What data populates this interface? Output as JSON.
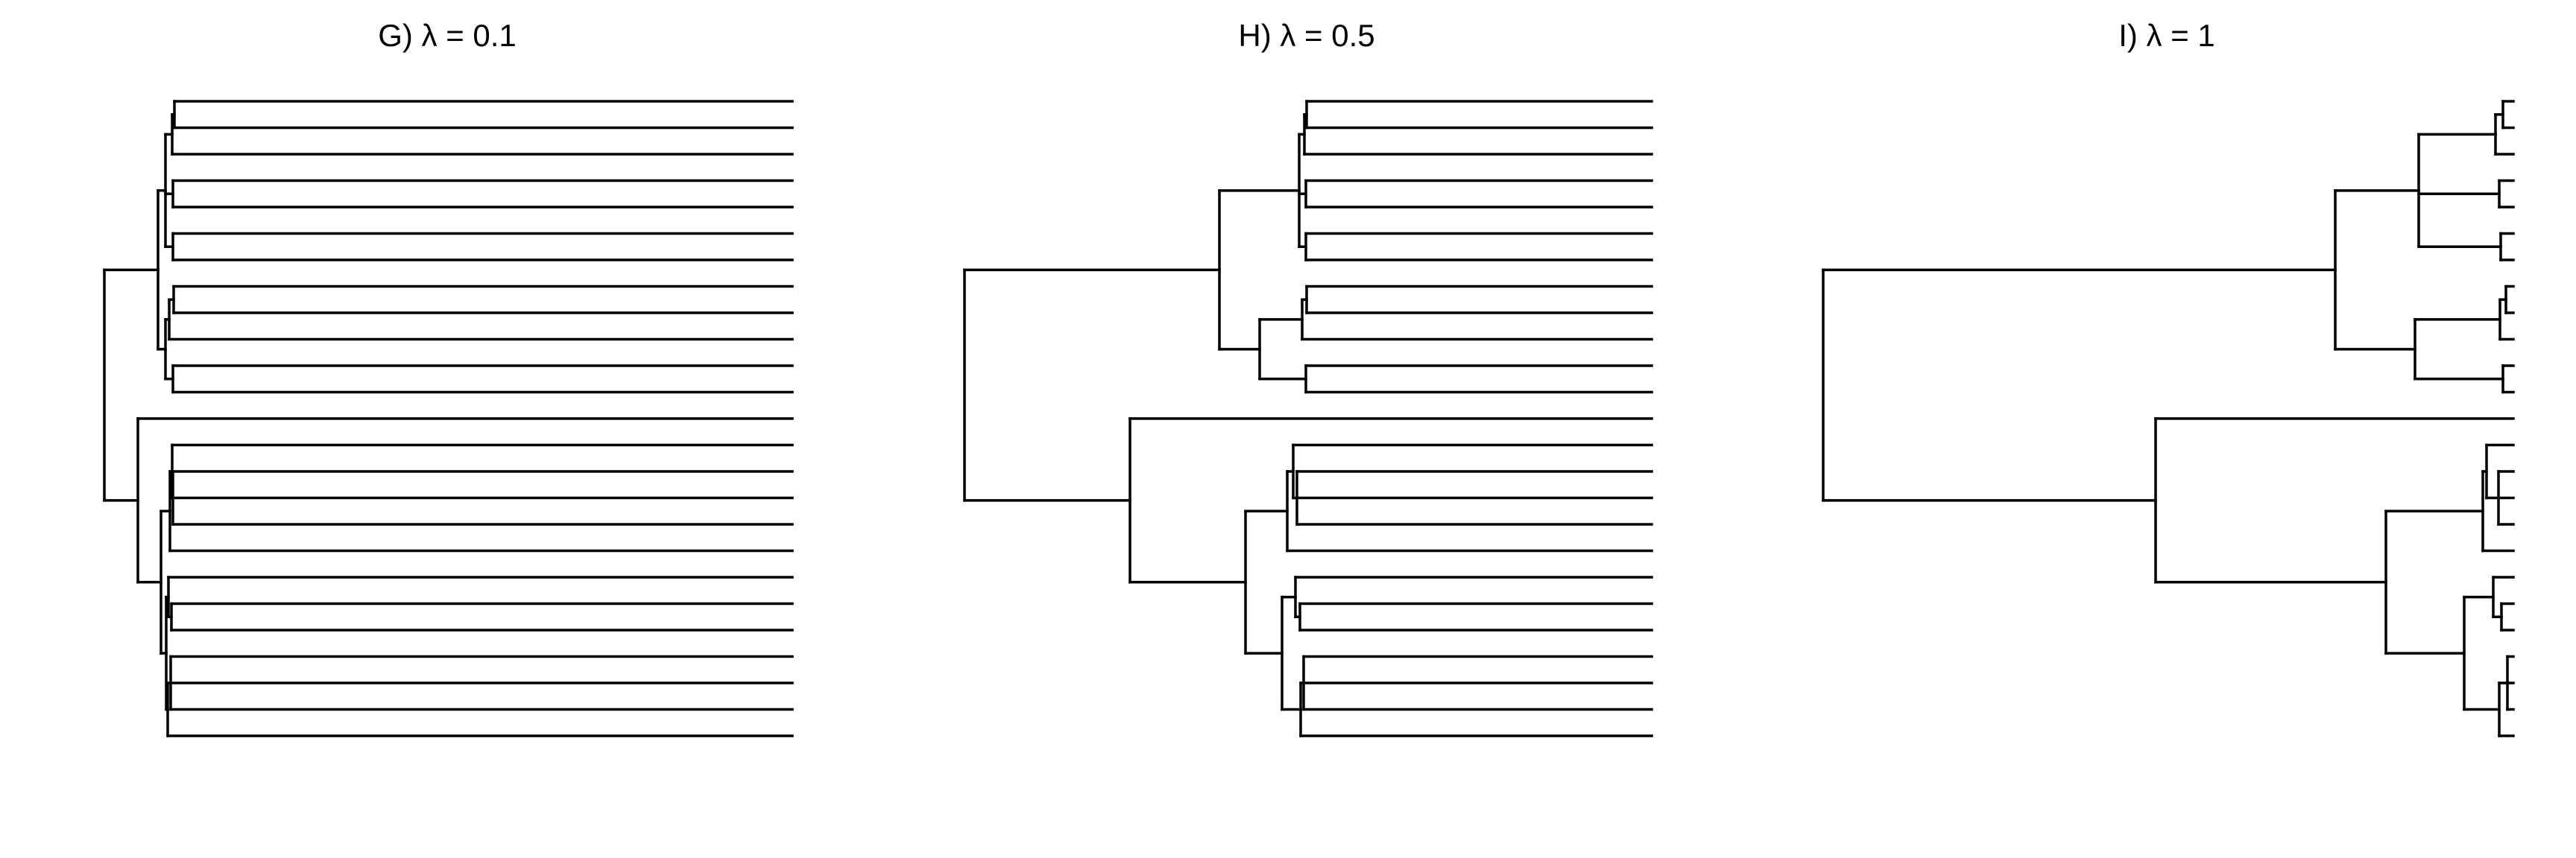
{
  "figure": {
    "line_color": "#000000",
    "background": "#ffffff",
    "tip_count": 25,
    "panels": [
      {
        "title": "G) λ = 0.1",
        "lambda": 0.1,
        "tree": "(((((t1,t2),t3),(t4,t5),(t6,t7)),((t8,t9),t10),(t11,t12)),((t13,(t14,t15,t16,t17,t18)),(t19,t20,t21,t22,t23,t24,t25)));",
        "branch_lengths_shown_by_line_length": true
      },
      {
        "title": "H) λ = 0.5",
        "lambda": 0.5,
        "tree": "(((((t1,t2),t3),(t4,t5),(t6,t7)),((t8,t9),t10),(t11,t12)),((t13,(t14,t15,t16,t17,t18)),(t19,t20,t21,t22,t23,t24,t25)));",
        "branch_lengths_shown_by_line_length": true
      },
      {
        "title": "I) λ = 1",
        "lambda": 1,
        "tree": "(((((t1,t2),t3),(t4,t5),(t6,t7)),((t8,t9),t10),(t11,t12)),((t13,(t14,t15,t16,t17,t18)),(t19,t20,t21,t22,t23,t24,t25)));",
        "branch_lengths_shown_by_line_length": true,
        "cropped_at_right_edge": true
      }
    ]
  }
}
